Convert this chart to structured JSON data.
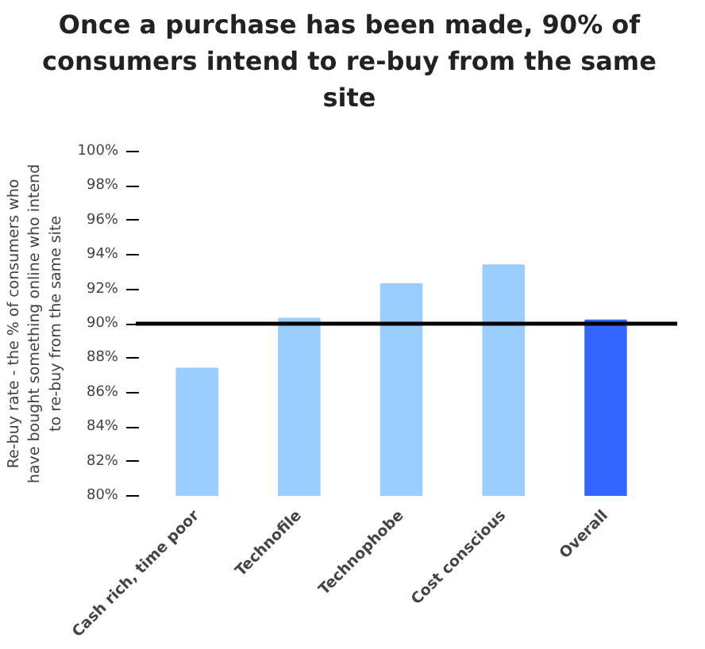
{
  "chart_data": {
    "type": "bar",
    "title": "Once a purchase has been made, 90% of consumers intend to re-buy from the same site",
    "ylabel": "Re-buy rate - the % of consumers who have bought something online who intend to re-buy from the same site",
    "categories": [
      "Cash rich, time poor",
      "Technofile",
      "Technophobe",
      "Cost conscious",
      "Overall"
    ],
    "values": [
      87.4,
      90.3,
      92.3,
      93.4,
      90.2
    ],
    "colors": [
      "#99ccff",
      "#99ccff",
      "#99ccff",
      "#99ccff",
      "#3366ff"
    ],
    "ylim": [
      80,
      100
    ],
    "yticks": [
      {
        "value": 80,
        "label": "80%"
      },
      {
        "value": 82,
        "label": "82%"
      },
      {
        "value": 84,
        "label": "84%"
      },
      {
        "value": 86,
        "label": "86%"
      },
      {
        "value": 88,
        "label": "88%"
      },
      {
        "value": 90,
        "label": "90%"
      },
      {
        "value": 92,
        "label": "92%"
      },
      {
        "value": 94,
        "label": "94%"
      },
      {
        "value": 96,
        "label": "96%"
      },
      {
        "value": 98,
        "label": "98%"
      },
      {
        "value": 100,
        "label": "100%"
      }
    ],
    "ref_lines": [
      {
        "axis": "y",
        "value": 90,
        "color": "#000000"
      }
    ],
    "grid": false
  }
}
